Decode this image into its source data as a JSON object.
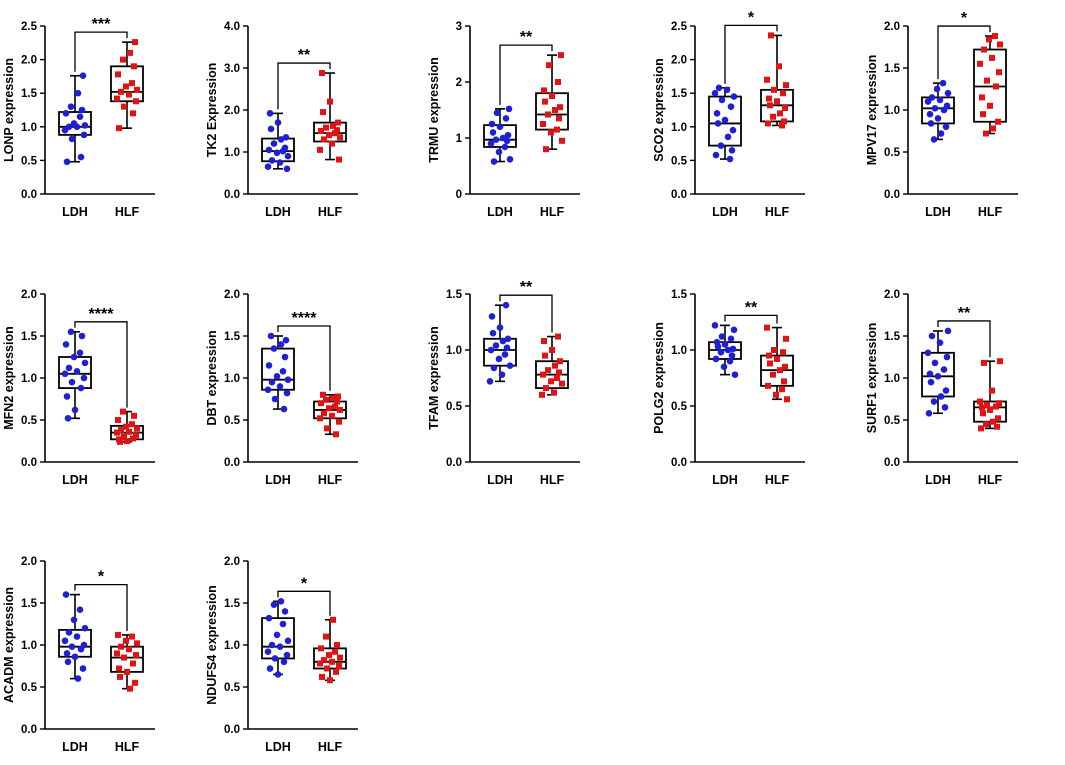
{
  "figure": {
    "colors": {
      "ldh": "#1f1fd6",
      "hlf": "#e01414",
      "axis": "#000000"
    },
    "marker_shapes": {
      "LDH": "circle",
      "HLF": "square"
    }
  },
  "chart_data": [
    {
      "type": "box",
      "ylabel": "LONP expression",
      "ylim": [
        0,
        2.5
      ],
      "yticks": [
        "0.0",
        "0.5",
        "1.0",
        "1.5",
        "2.0",
        "2.5"
      ],
      "categories": [
        "LDH",
        "HLF"
      ],
      "significance": "***",
      "series": [
        {
          "name": "LDH",
          "min": 0.48,
          "q1": 0.88,
          "median": 1.0,
          "q3": 1.22,
          "max": 1.76,
          "points": [
            0.48,
            0.55,
            0.82,
            0.88,
            0.95,
            1.0,
            1.0,
            1.02,
            1.05,
            1.15,
            1.2,
            1.25,
            1.3,
            1.5,
            1.76
          ]
        },
        {
          "name": "HLF",
          "min": 0.98,
          "q1": 1.38,
          "median": 1.52,
          "q3": 1.9,
          "max": 2.26,
          "points": [
            0.98,
            1.2,
            1.3,
            1.38,
            1.42,
            1.48,
            1.52,
            1.55,
            1.6,
            1.65,
            1.78,
            1.9,
            2.0,
            2.1,
            2.26
          ]
        }
      ]
    },
    {
      "type": "box",
      "ylabel": "TK2 Expression",
      "ylim": [
        0,
        4
      ],
      "yticks": [
        "0.0",
        "1.0",
        "2.0",
        "3.0",
        "4.0"
      ],
      "categories": [
        "LDH",
        "HLF"
      ],
      "significance": "**",
      "series": [
        {
          "name": "LDH",
          "min": 0.6,
          "q1": 0.78,
          "median": 1.02,
          "q3": 1.32,
          "max": 1.92,
          "points": [
            0.6,
            0.65,
            0.75,
            0.8,
            0.9,
            0.98,
            1.02,
            1.05,
            1.1,
            1.2,
            1.3,
            1.35,
            1.55,
            1.7,
            1.92
          ]
        },
        {
          "name": "HLF",
          "min": 0.82,
          "q1": 1.25,
          "median": 1.45,
          "q3": 1.7,
          "max": 2.88,
          "points": [
            0.82,
            1.05,
            1.2,
            1.3,
            1.35,
            1.4,
            1.45,
            1.5,
            1.52,
            1.58,
            1.62,
            1.7,
            1.95,
            2.2,
            2.88
          ]
        }
      ]
    },
    {
      "type": "box",
      "ylabel": "TRMU expression",
      "ylim": [
        0,
        3
      ],
      "yticks": [
        "0",
        "1",
        "2",
        "3"
      ],
      "categories": [
        "LDH",
        "HLF"
      ],
      "significance": "**",
      "series": [
        {
          "name": "LDH",
          "min": 0.58,
          "q1": 0.84,
          "median": 0.97,
          "q3": 1.23,
          "max": 1.52,
          "points": [
            0.58,
            0.62,
            0.75,
            0.84,
            0.9,
            0.95,
            0.97,
            1.0,
            1.05,
            1.1,
            1.2,
            1.25,
            1.35,
            1.45,
            1.52
          ]
        },
        {
          "name": "HLF",
          "min": 0.8,
          "q1": 1.15,
          "median": 1.42,
          "q3": 1.8,
          "max": 2.48,
          "points": [
            0.8,
            0.95,
            1.1,
            1.15,
            1.25,
            1.35,
            1.42,
            1.5,
            1.55,
            1.65,
            1.75,
            1.85,
            2.0,
            2.3,
            2.48
          ]
        }
      ]
    },
    {
      "type": "box",
      "ylabel": "SCO2 expression",
      "ylim": [
        0,
        2.5
      ],
      "yticks": [
        "0.0",
        "0.5",
        "1.0",
        "1.5",
        "2.0",
        "2.5"
      ],
      "categories": [
        "LDH",
        "HLF"
      ],
      "significance": "*",
      "series": [
        {
          "name": "LDH",
          "min": 0.52,
          "q1": 0.72,
          "median": 1.05,
          "q3": 1.45,
          "max": 1.58,
          "points": [
            0.52,
            0.58,
            0.65,
            0.72,
            0.85,
            0.95,
            1.05,
            1.1,
            1.2,
            1.3,
            1.4,
            1.45,
            1.5,
            1.55,
            1.58
          ]
        },
        {
          "name": "HLF",
          "min": 1.02,
          "q1": 1.08,
          "median": 1.32,
          "q3": 1.55,
          "max": 2.36,
          "points": [
            1.02,
            1.05,
            1.08,
            1.15,
            1.2,
            1.28,
            1.32,
            1.38,
            1.42,
            1.5,
            1.55,
            1.62,
            1.7,
            1.9,
            2.36
          ]
        }
      ]
    },
    {
      "type": "box",
      "ylabel": "MPV17 expression",
      "ylim": [
        0,
        2
      ],
      "yticks": [
        "0.0",
        "0.5",
        "1.0",
        "1.5",
        "2.0"
      ],
      "categories": [
        "LDH",
        "HLF"
      ],
      "significance": "*",
      "series": [
        {
          "name": "LDH",
          "min": 0.65,
          "q1": 0.84,
          "median": 1.02,
          "q3": 1.15,
          "max": 1.32,
          "points": [
            0.65,
            0.72,
            0.8,
            0.84,
            0.9,
            0.95,
            1.0,
            1.02,
            1.05,
            1.1,
            1.12,
            1.15,
            1.2,
            1.25,
            1.32
          ]
        },
        {
          "name": "HLF",
          "min": 0.72,
          "q1": 0.86,
          "median": 1.28,
          "q3": 1.72,
          "max": 1.88,
          "points": [
            0.72,
            0.78,
            0.86,
            0.95,
            1.05,
            1.15,
            1.28,
            1.35,
            1.45,
            1.55,
            1.62,
            1.72,
            1.78,
            1.84,
            1.88
          ]
        }
      ]
    },
    {
      "type": "box",
      "ylabel": "MFN2 expression",
      "ylim": [
        0,
        2
      ],
      "yticks": [
        "0.0",
        "0.5",
        "1.0",
        "1.5",
        "2.0"
      ],
      "categories": [
        "LDH",
        "HLF"
      ],
      "significance": "****",
      "series": [
        {
          "name": "LDH",
          "min": 0.52,
          "q1": 0.88,
          "median": 1.05,
          "q3": 1.25,
          "max": 1.55,
          "points": [
            0.52,
            0.62,
            0.78,
            0.88,
            0.95,
            1.0,
            1.05,
            1.08,
            1.12,
            1.18,
            1.25,
            1.3,
            1.4,
            1.5,
            1.55
          ]
        },
        {
          "name": "HLF",
          "min": 0.24,
          "q1": 0.27,
          "median": 0.35,
          "q3": 0.43,
          "max": 0.6,
          "points": [
            0.24,
            0.25,
            0.27,
            0.28,
            0.3,
            0.32,
            0.35,
            0.36,
            0.38,
            0.4,
            0.42,
            0.45,
            0.5,
            0.55,
            0.6
          ]
        }
      ]
    },
    {
      "type": "box",
      "ylabel": "DBT expression",
      "ylim": [
        0,
        2
      ],
      "yticks": [
        "0.0",
        "0.5",
        "1.0",
        "1.5",
        "2.0"
      ],
      "categories": [
        "LDH",
        "HLF"
      ],
      "significance": "****",
      "series": [
        {
          "name": "LDH",
          "min": 0.63,
          "q1": 0.86,
          "median": 0.98,
          "q3": 1.35,
          "max": 1.5,
          "points": [
            0.63,
            0.75,
            0.82,
            0.86,
            0.9,
            0.95,
            0.98,
            1.02,
            1.08,
            1.15,
            1.25,
            1.35,
            1.4,
            1.45,
            1.5
          ]
        },
        {
          "name": "HLF",
          "min": 0.33,
          "q1": 0.52,
          "median": 0.62,
          "q3": 0.72,
          "max": 0.8,
          "points": [
            0.33,
            0.4,
            0.48,
            0.52,
            0.55,
            0.58,
            0.62,
            0.64,
            0.66,
            0.7,
            0.72,
            0.74,
            0.76,
            0.78,
            0.8
          ]
        }
      ]
    },
    {
      "type": "box",
      "ylabel": "TFAM expression",
      "ylim": [
        0,
        1.5
      ],
      "yticks": [
        "0.0",
        "0.5",
        "1.0",
        "1.5"
      ],
      "categories": [
        "LDH",
        "HLF"
      ],
      "significance": "**",
      "series": [
        {
          "name": "LDH",
          "min": 0.72,
          "q1": 0.86,
          "median": 1.0,
          "q3": 1.1,
          "max": 1.4,
          "points": [
            0.72,
            0.78,
            0.84,
            0.86,
            0.92,
            0.96,
            1.0,
            1.02,
            1.04,
            1.08,
            1.1,
            1.15,
            1.2,
            1.3,
            1.4
          ]
        },
        {
          "name": "HLF",
          "min": 0.6,
          "q1": 0.66,
          "median": 0.78,
          "q3": 0.9,
          "max": 1.12,
          "points": [
            0.6,
            0.62,
            0.66,
            0.7,
            0.72,
            0.75,
            0.78,
            0.8,
            0.82,
            0.86,
            0.9,
            0.95,
            1.0,
            1.08,
            1.12
          ]
        }
      ]
    },
    {
      "type": "box",
      "ylabel": "POLG2 expression",
      "ylim": [
        0,
        1.5
      ],
      "yticks": [
        "0.0",
        "0.5",
        "1.0",
        "1.5"
      ],
      "categories": [
        "LDH",
        "HLF"
      ],
      "significance": "**",
      "series": [
        {
          "name": "LDH",
          "min": 0.78,
          "q1": 0.92,
          "median": 1.0,
          "q3": 1.07,
          "max": 1.22,
          "points": [
            0.78,
            0.85,
            0.9,
            0.92,
            0.95,
            0.98,
            1.0,
            1.01,
            1.03,
            1.05,
            1.07,
            1.1,
            1.12,
            1.18,
            1.22
          ]
        },
        {
          "name": "HLF",
          "min": 0.56,
          "q1": 0.68,
          "median": 0.82,
          "q3": 0.95,
          "max": 1.2,
          "points": [
            0.56,
            0.6,
            0.65,
            0.68,
            0.72,
            0.78,
            0.82,
            0.85,
            0.88,
            0.92,
            0.95,
            0.98,
            1.0,
            1.1,
            1.2
          ]
        }
      ]
    },
    {
      "type": "box",
      "ylabel": "SURF1 expression",
      "ylim": [
        0,
        2
      ],
      "yticks": [
        "0.0",
        "0.5",
        "1.0",
        "1.5",
        "2.0"
      ],
      "categories": [
        "LDH",
        "HLF"
      ],
      "significance": "**",
      "series": [
        {
          "name": "LDH",
          "min": 0.58,
          "q1": 0.78,
          "median": 1.02,
          "q3": 1.3,
          "max": 1.56,
          "points": [
            0.58,
            0.65,
            0.72,
            0.78,
            0.85,
            0.95,
            1.02,
            1.05,
            1.1,
            1.18,
            1.25,
            1.3,
            1.42,
            1.5,
            1.56
          ]
        },
        {
          "name": "HLF",
          "min": 0.4,
          "q1": 0.48,
          "median": 0.65,
          "q3": 0.72,
          "max": 1.2,
          "points": [
            0.4,
            0.42,
            0.45,
            0.48,
            0.52,
            0.58,
            0.62,
            0.65,
            0.66,
            0.68,
            0.7,
            0.72,
            0.85,
            1.18,
            1.2
          ]
        }
      ]
    },
    {
      "type": "box",
      "ylabel": "ACADM expression",
      "ylim": [
        0,
        2
      ],
      "yticks": [
        "0.0",
        "0.5",
        "1.0",
        "1.5",
        "2.0"
      ],
      "categories": [
        "LDH",
        "HLF"
      ],
      "significance": "*",
      "series": [
        {
          "name": "LDH",
          "min": 0.6,
          "q1": 0.86,
          "median": 0.98,
          "q3": 1.18,
          "max": 1.6,
          "points": [
            0.6,
            0.72,
            0.8,
            0.86,
            0.9,
            0.95,
            0.98,
            1.0,
            1.05,
            1.1,
            1.15,
            1.2,
            1.3,
            1.42,
            1.6
          ]
        },
        {
          "name": "HLF",
          "min": 0.48,
          "q1": 0.68,
          "median": 0.85,
          "q3": 0.98,
          "max": 1.12,
          "points": [
            0.48,
            0.55,
            0.62,
            0.68,
            0.72,
            0.78,
            0.85,
            0.88,
            0.9,
            0.95,
            0.98,
            1.02,
            1.05,
            1.1,
            1.12
          ]
        }
      ]
    },
    {
      "type": "box",
      "ylabel": "NDUFS4 expression",
      "ylim": [
        0,
        2
      ],
      "yticks": [
        "0.0",
        "0.5",
        "1.0",
        "1.5",
        "2.0"
      ],
      "categories": [
        "LDH",
        "HLF"
      ],
      "significance": "*",
      "series": [
        {
          "name": "LDH",
          "min": 0.65,
          "q1": 0.84,
          "median": 0.98,
          "q3": 1.32,
          "max": 1.52,
          "points": [
            0.65,
            0.72,
            0.8,
            0.84,
            0.88,
            0.92,
            0.98,
            1.0,
            1.05,
            1.12,
            1.25,
            1.32,
            1.4,
            1.48,
            1.52
          ]
        },
        {
          "name": "HLF",
          "min": 0.58,
          "q1": 0.72,
          "median": 0.8,
          "q3": 0.96,
          "max": 1.3,
          "points": [
            0.58,
            0.62,
            0.68,
            0.72,
            0.75,
            0.78,
            0.8,
            0.82,
            0.85,
            0.88,
            0.92,
            0.96,
            1.0,
            1.1,
            1.3
          ]
        }
      ]
    }
  ]
}
